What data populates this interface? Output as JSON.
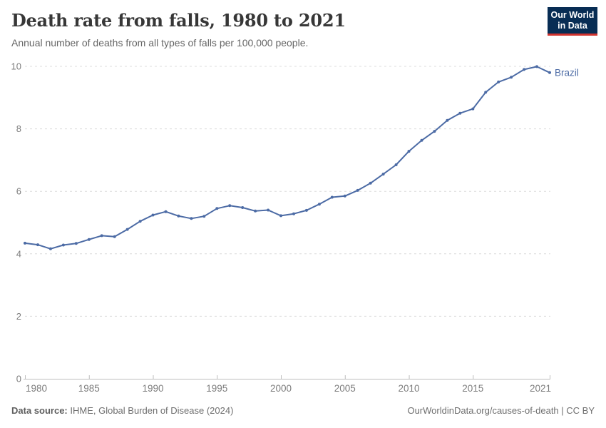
{
  "header": {
    "title": "Death rate from falls, 1980 to 2021",
    "subtitle": "Annual number of deaths from all types of falls per 100,000 people.",
    "logo_line1": "Our World",
    "logo_line2": "in Data"
  },
  "footer": {
    "source_label": "Data source:",
    "source_text": "IHME, Global Burden of Disease (2024)",
    "attribution": "OurWorldinData.org/causes-of-death | CC BY"
  },
  "colors": {
    "accent": "#4c6ba5",
    "gridline": "#dcdcdc",
    "axis_line": "#bdbdbd",
    "tick_label": "#7d7d7d",
    "logo_bg": "#082d54",
    "logo_red": "#d0342f"
  },
  "chart_data": {
    "type": "line",
    "title": "Death rate from falls, 1980 to 2021",
    "subtitle": "Annual number of deaths from all types of falls per 100,000 people.",
    "xlabel": "",
    "ylabel": "",
    "xlim": [
      1980,
      2021
    ],
    "ylim": [
      0,
      10
    ],
    "x_ticks": [
      1980,
      1985,
      1990,
      1995,
      2000,
      2005,
      2010,
      2015,
      2021
    ],
    "y_ticks": [
      0,
      2,
      4,
      6,
      8,
      10
    ],
    "grid": true,
    "legend_position": "end-of-line",
    "series": [
      {
        "name": "Brazil",
        "x": [
          1980,
          1981,
          1982,
          1983,
          1984,
          1985,
          1986,
          1987,
          1988,
          1989,
          1990,
          1991,
          1992,
          1993,
          1994,
          1995,
          1996,
          1997,
          1998,
          1999,
          2000,
          2001,
          2002,
          2003,
          2004,
          2005,
          2006,
          2007,
          2008,
          2009,
          2010,
          2011,
          2012,
          2013,
          2014,
          2015,
          2016,
          2017,
          2018,
          2019,
          2020,
          2021
        ],
        "values": [
          4.34,
          4.29,
          4.16,
          4.28,
          4.33,
          4.46,
          4.58,
          4.55,
          4.78,
          5.04,
          5.24,
          5.35,
          5.21,
          5.13,
          5.2,
          5.45,
          5.54,
          5.48,
          5.37,
          5.4,
          5.22,
          5.28,
          5.39,
          5.59,
          5.81,
          5.85,
          6.03,
          6.26,
          6.55,
          6.85,
          7.28,
          7.63,
          7.92,
          8.27,
          8.5,
          8.64,
          9.17,
          9.5,
          9.65,
          9.9,
          9.99,
          9.8
        ]
      }
    ]
  }
}
